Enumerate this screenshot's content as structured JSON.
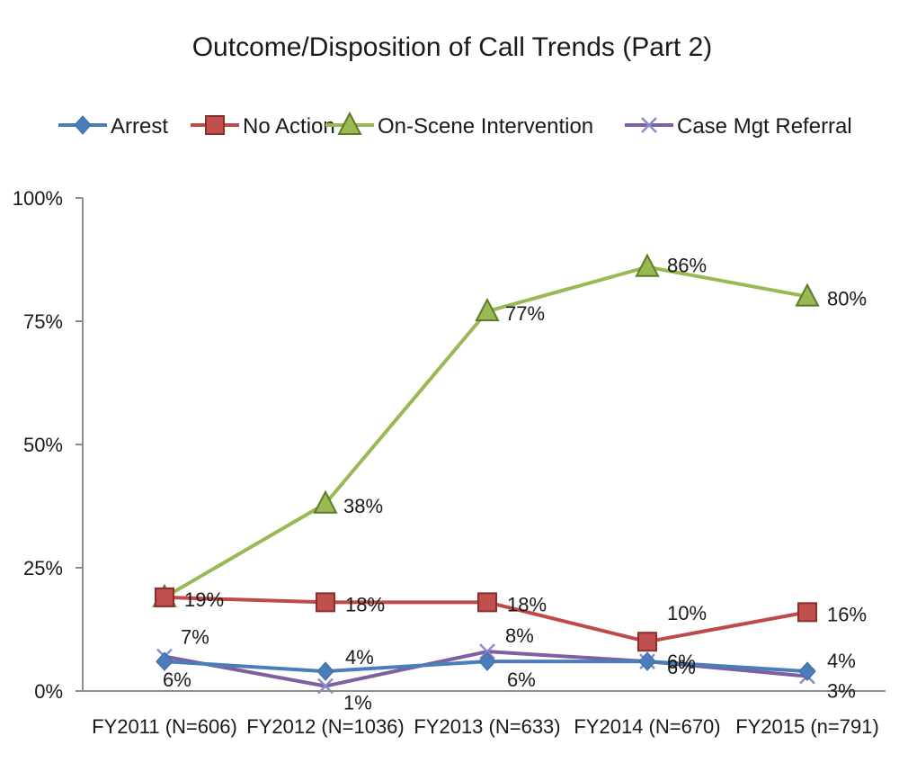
{
  "chart_data": {
    "type": "line",
    "title": "Outcome/Disposition of Call Trends (Part 2)",
    "categories": [
      "FY2011 (N=606)",
      "FY2012 (N=1036)",
      "FY2013 (N=633)",
      "FY2014 (N=670)",
      "FY2015 (n=791)"
    ],
    "y_ticks": [
      "0%",
      "25%",
      "50%",
      "75%",
      "100%"
    ],
    "ylim": [
      0,
      100
    ],
    "legend_position": "top",
    "grid": false,
    "series": [
      {
        "name": "Arrest",
        "values": [
          6,
          4,
          6,
          6,
          4
        ],
        "labels": [
          "6%",
          "4%",
          "6%",
          "6%",
          "4%"
        ],
        "color": "#4a7ebb",
        "marker": "diamond"
      },
      {
        "name": "No Action",
        "values": [
          19,
          18,
          18,
          10,
          16
        ],
        "labels": [
          "19%",
          "18%",
          "18%",
          "10%",
          "16%"
        ],
        "color": "#be4b48",
        "marker": "square"
      },
      {
        "name": "On-Scene Intervention",
        "values": [
          19,
          38,
          77,
          86,
          80
        ],
        "labels": [
          "",
          "38%",
          "77%",
          "86%",
          "80%"
        ],
        "color": "#98b954",
        "marker": "triangle"
      },
      {
        "name": "Case Mgt Referral",
        "values": [
          7,
          1,
          8,
          6,
          3
        ],
        "labels": [
          "7%",
          "1%",
          "8%",
          "6%",
          "3%"
        ],
        "color": "#7d60a0",
        "marker": "x"
      }
    ]
  }
}
